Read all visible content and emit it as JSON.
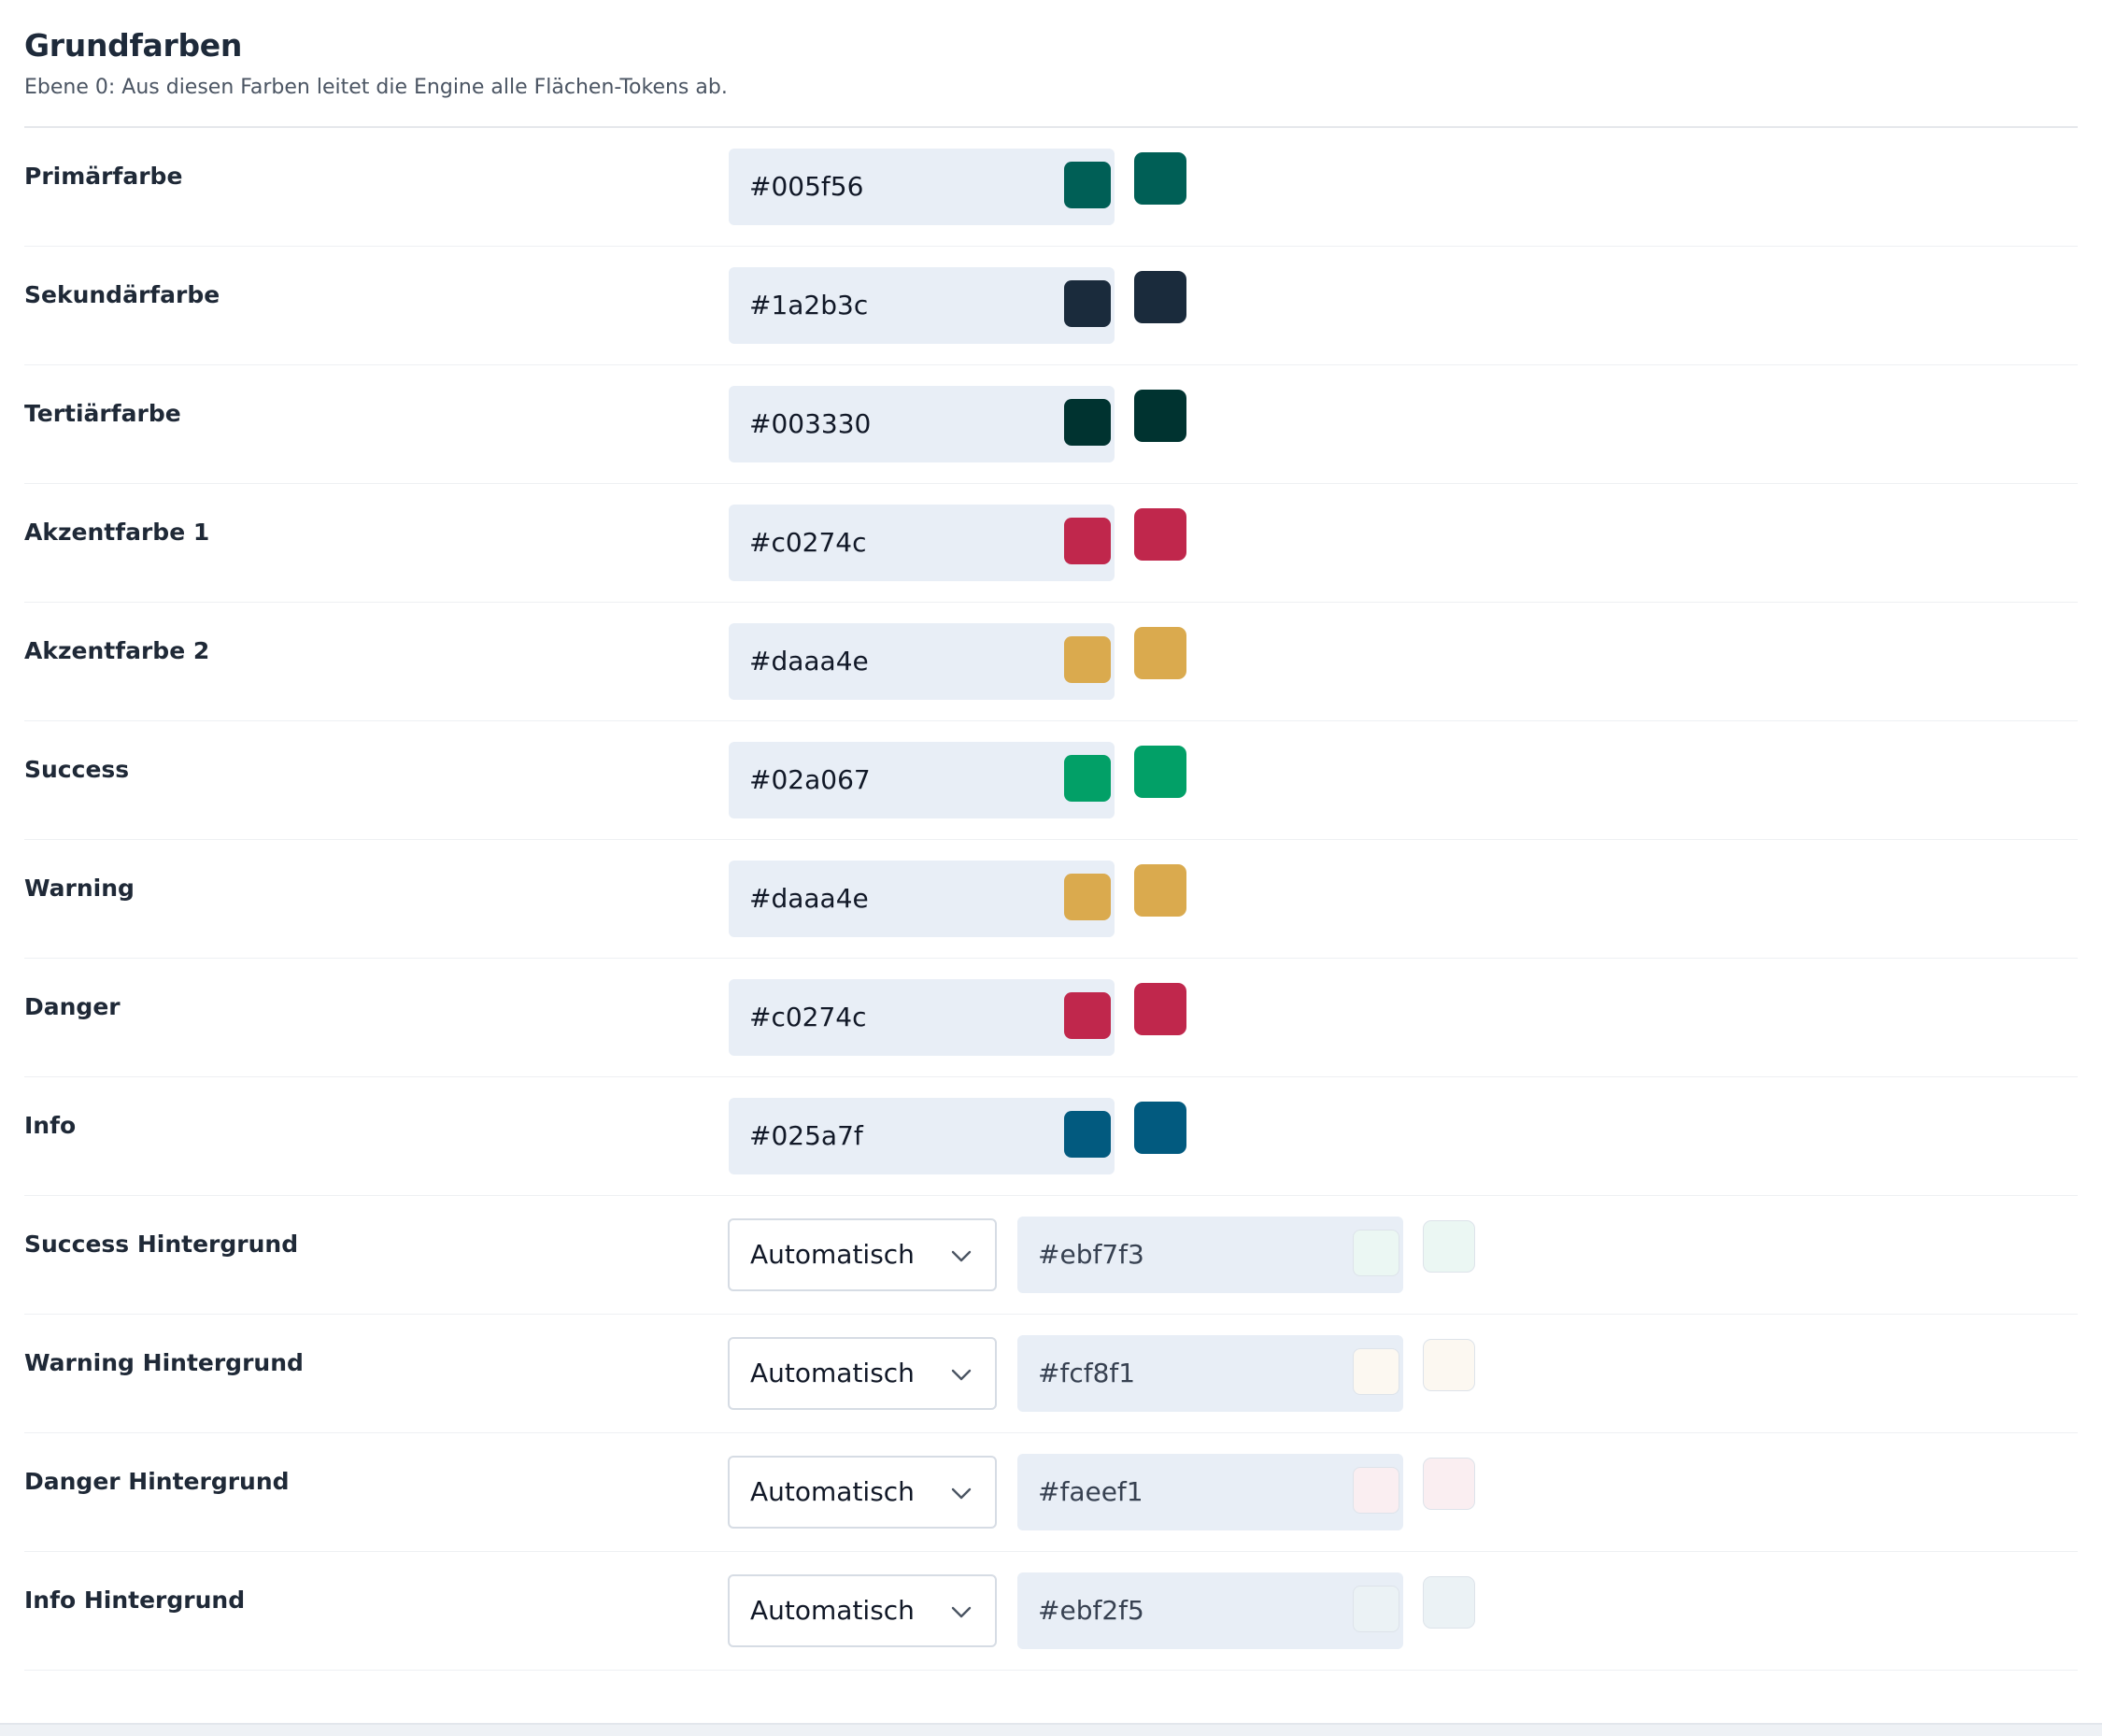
{
  "section": {
    "title": "Grundfarben",
    "subtitle": "Ebene 0: Aus diesen Farben leitet die Engine alle Flächen-Tokens ab."
  },
  "base_colors": [
    {
      "label": "Primärfarbe",
      "hex": "#005f56"
    },
    {
      "label": "Sekundärfarbe",
      "hex": "#1a2b3c"
    },
    {
      "label": "Tertiärfarbe",
      "hex": "#003330"
    },
    {
      "label": "Akzentfarbe 1",
      "hex": "#c0274c"
    },
    {
      "label": "Akzentfarbe 2",
      "hex": "#daaa4e"
    },
    {
      "label": "Success",
      "hex": "#02a067"
    },
    {
      "label": "Warning",
      "hex": "#daaa4e"
    },
    {
      "label": "Danger",
      "hex": "#c0274c"
    },
    {
      "label": "Info",
      "hex": "#025a7f"
    }
  ],
  "background_colors": [
    {
      "label": "Success Hintergrund",
      "mode": "Automatisch",
      "hex": "#ebf7f3"
    },
    {
      "label": "Warning Hintergrund",
      "mode": "Automatisch",
      "hex": "#fcf8f1"
    },
    {
      "label": "Danger Hintergrund",
      "mode": "Automatisch",
      "hex": "#faeef1"
    },
    {
      "label": "Info Hintergrund",
      "mode": "Automatisch",
      "hex": "#ebf2f5"
    }
  ],
  "icons": {
    "select_arrow": "chevron-down-icon"
  }
}
